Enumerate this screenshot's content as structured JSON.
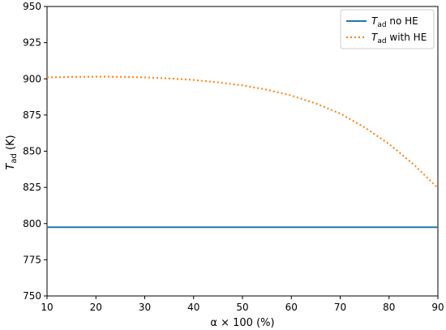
{
  "chart_data": {
    "type": "line",
    "xlabel": "α × 100 (%)",
    "ylabel_main": "T",
    "ylabel_sub": "ad",
    "ylabel_unit": " (K)",
    "xlim": [
      10,
      90
    ],
    "ylim": [
      750,
      950
    ],
    "xticks": [
      10,
      20,
      30,
      40,
      50,
      60,
      70,
      80,
      90
    ],
    "yticks": [
      750,
      775,
      800,
      825,
      850,
      875,
      900,
      925,
      950
    ],
    "grid": false,
    "legend_position": "top-right",
    "series": [
      {
        "name_main": "T",
        "name_sub": "ad",
        "name_rest": " no HE",
        "color": "#1f77b4",
        "style": "solid",
        "x": [
          10,
          90
        ],
        "y": [
          797.5,
          797.5
        ]
      },
      {
        "name_main": "T",
        "name_sub": "ad",
        "name_rest": " with HE",
        "color": "#ff7f0e",
        "style": "dotted",
        "x": [
          10,
          15,
          20,
          25,
          30,
          35,
          40,
          45,
          50,
          55,
          60,
          65,
          70,
          75,
          80,
          85,
          90
        ],
        "y": [
          901.0,
          901.3,
          901.5,
          901.4,
          901.0,
          900.3,
          899.2,
          897.6,
          895.5,
          892.5,
          888.5,
          883.0,
          876.0,
          866.5,
          855.0,
          841.0,
          824.5
        ]
      }
    ]
  }
}
